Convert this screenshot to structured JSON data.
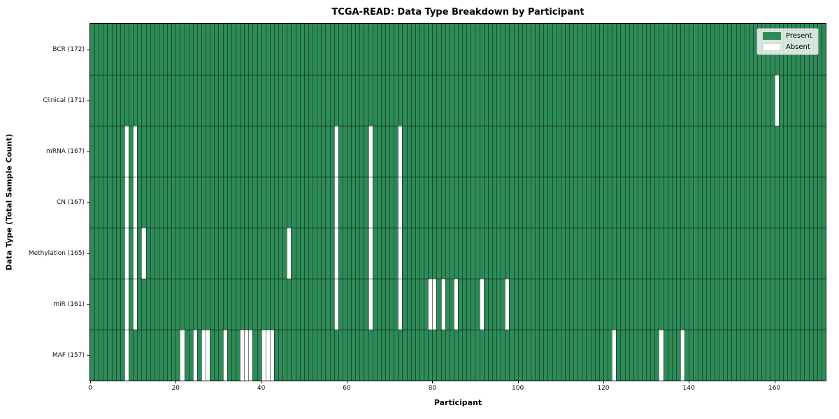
{
  "title": "TCGA-READ: Data Type Breakdown by Participant",
  "chart_data": {
    "type": "heatmap",
    "title": "TCGA-READ: Data Type Breakdown by Participant",
    "xlabel": "Participant",
    "ylabel": "Data Type (Total Sample Count)",
    "n_participants": 172,
    "xlim": [
      0,
      172
    ],
    "x_ticks": [
      0,
      20,
      40,
      60,
      80,
      100,
      120,
      140,
      160
    ],
    "grid": true,
    "legend_position": "upper right",
    "legend": [
      {
        "label": "Present",
        "color": "#2e8b57"
      },
      {
        "label": "Absent",
        "color": "#ffffff"
      }
    ],
    "rows": [
      {
        "label": "BCR (172)",
        "total": 172,
        "absent": []
      },
      {
        "label": "Clinical (171)",
        "total": 171,
        "absent": [
          160
        ]
      },
      {
        "label": "mRNA (167)",
        "total": 167,
        "absent": [
          8,
          10,
          57,
          65,
          72
        ]
      },
      {
        "label": "CN (167)",
        "total": 167,
        "absent": [
          8,
          10,
          57,
          65,
          72
        ]
      },
      {
        "label": "Methylation (165)",
        "total": 165,
        "absent": [
          8,
          10,
          12,
          46,
          57,
          65,
          72
        ]
      },
      {
        "label": "miR (161)",
        "total": 161,
        "absent": [
          8,
          10,
          57,
          65,
          72,
          79,
          80,
          82,
          85,
          91,
          97
        ]
      },
      {
        "label": "MAF (157)",
        "total": 157,
        "absent": [
          8,
          21,
          24,
          26,
          27,
          31,
          35,
          36,
          37,
          40,
          41,
          42,
          122,
          133,
          138
        ]
      }
    ],
    "colors": {
      "present": "#2e8b57",
      "absent": "#ffffff",
      "cell_gridline": "rgba(5,30,18,0.55)",
      "row_divider": "rgba(0,0,0,0.65)"
    }
  }
}
